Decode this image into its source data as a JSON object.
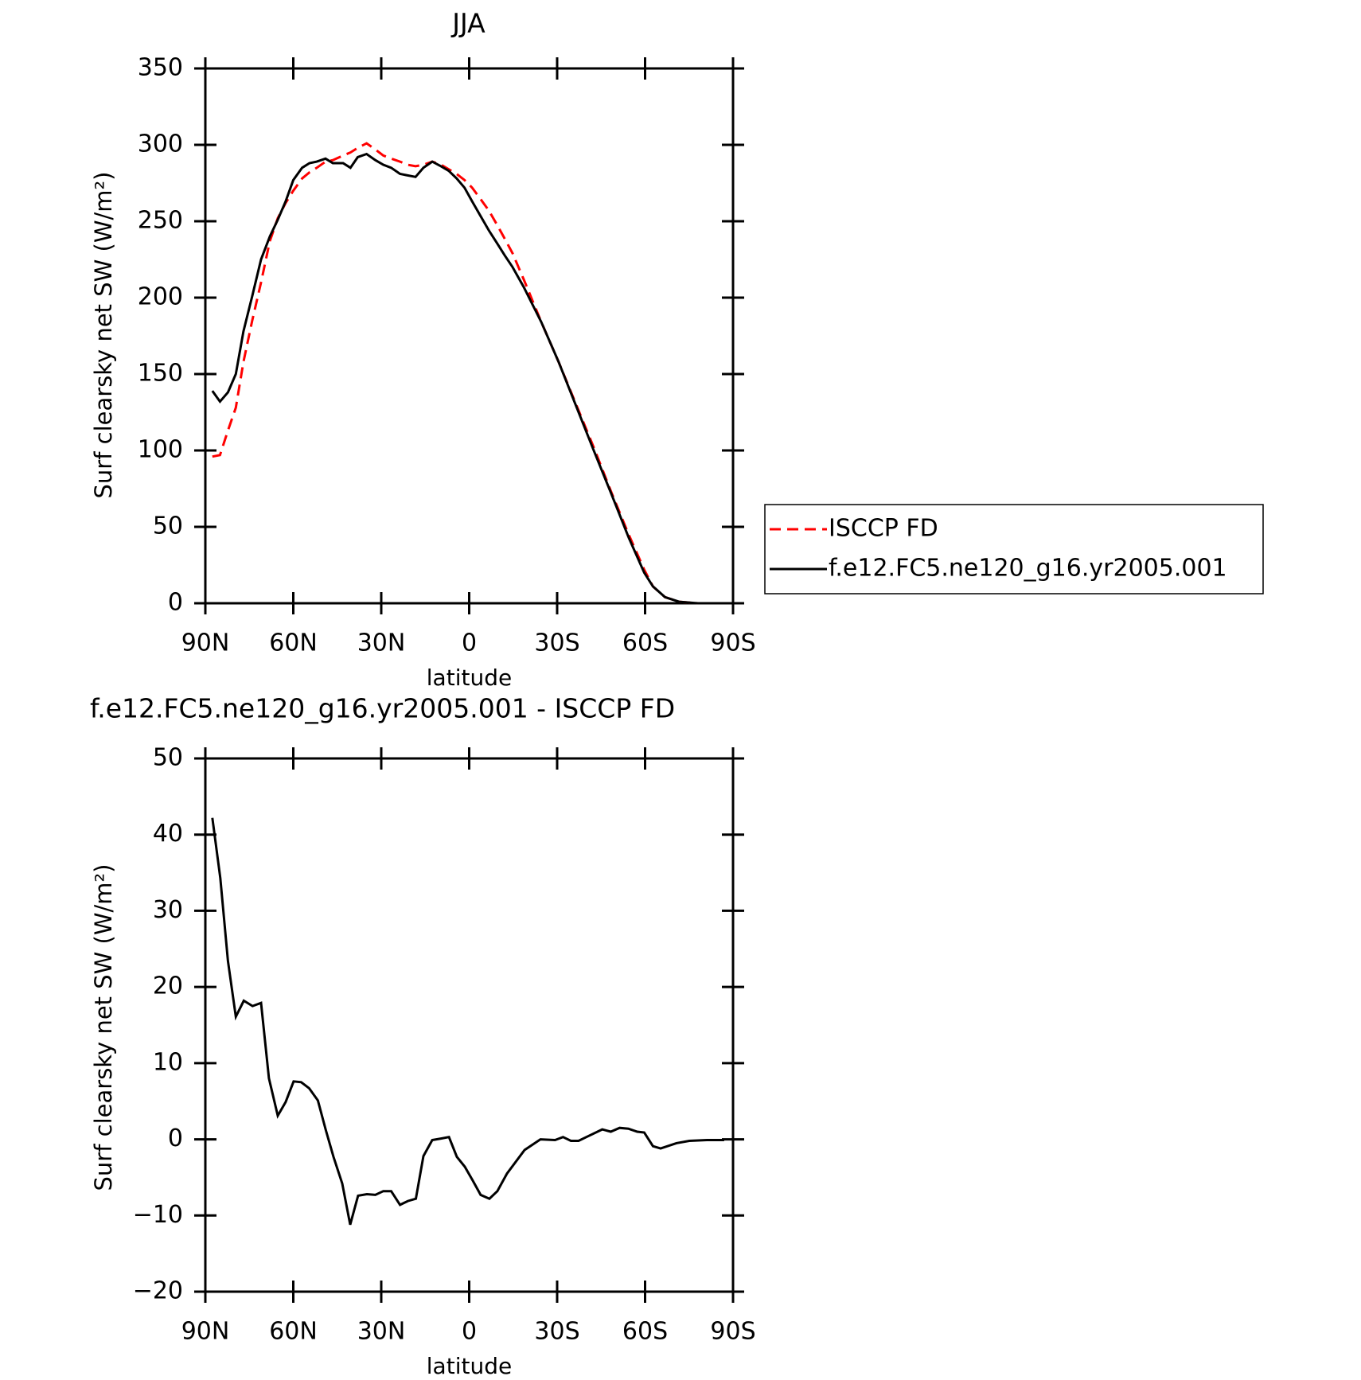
{
  "chart_data": [
    {
      "type": "line",
      "title": "JJA",
      "xlabel": "latitude",
      "ylabel": "Surf clearsky net SW (W/m²)",
      "x": [
        87.6,
        85,
        82.3,
        79.6,
        77,
        74,
        71,
        68,
        65.3,
        62.6,
        60,
        57,
        54.5,
        52,
        49,
        46.5,
        43,
        40.5,
        38,
        35,
        32,
        29.3,
        26.6,
        23.6,
        21,
        18.3,
        15.6,
        12.6,
        9.6,
        7,
        4.3,
        1.6,
        -1,
        -3.7,
        -6.7,
        -9.4,
        -12,
        -14.8,
        -18.6,
        -24.6,
        -30.5,
        -36.5,
        -42.5,
        -48.4,
        -54.4,
        -59.7,
        -62.7,
        -66.8,
        -71.6,
        -78,
        -88.8
      ],
      "series": [
        {
          "name": "ISCCP FD",
          "color": "#ff0000",
          "dashed": true,
          "values": [
            96,
            97,
            113,
            128,
            158,
            185,
            210,
            237,
            252,
            262,
            270,
            278,
            282,
            285,
            289,
            290,
            293,
            295,
            298,
            301,
            297,
            293,
            291,
            289,
            287,
            286,
            287,
            289,
            287,
            284,
            281,
            277,
            272,
            265,
            257,
            248,
            239,
            229,
            212,
            184,
            158,
            130,
            102,
            73,
            45,
            22,
            11,
            4,
            1,
            0,
            0
          ]
        },
        {
          "name": "f.e12.FC5.ne120_g16.yr2005.001",
          "color": "#000000",
          "dashed": false,
          "values": [
            139,
            132,
            138,
            150,
            178,
            201,
            225,
            240,
            251,
            263,
            277,
            285,
            288,
            289,
            291,
            288,
            288,
            285,
            292,
            294,
            290,
            287,
            285,
            281,
            280,
            279,
            285,
            289,
            286,
            283,
            278,
            272,
            263,
            254,
            244,
            236,
            228,
            220,
            207,
            184,
            158,
            129,
            100,
            72,
            43,
            20,
            11,
            4,
            1,
            0,
            0
          ]
        }
      ],
      "xlim": [
        90,
        -90
      ],
      "xticks": [
        {
          "value": 90,
          "label": "90N"
        },
        {
          "value": 60,
          "label": "60N"
        },
        {
          "value": 30,
          "label": "30N"
        },
        0,
        {
          "value": -30,
          "label": "30S"
        },
        {
          "value": -60,
          "label": "60S"
        },
        {
          "value": -90,
          "label": "90S"
        }
      ],
      "ylim": [
        0,
        350
      ],
      "yticks": [
        0,
        50,
        100,
        150,
        200,
        250,
        300,
        350
      ],
      "legend": "right"
    },
    {
      "type": "line",
      "title": "f.e12.FC5.ne120_g16.yr2005.001 - ISCCP FD",
      "xlabel": "latitude",
      "ylabel": "Surf clearsky net SW (W/m²)",
      "x": [
        87.6,
        84.9,
        82.3,
        79.6,
        76.9,
        73.9,
        71,
        68.3,
        65.3,
        62.6,
        59.9,
        57.3,
        54.6,
        51.6,
        48.9,
        46.3,
        43.3,
        40.6,
        37.9,
        34.9,
        32,
        29.3,
        26.6,
        23.6,
        20.9,
        18.2,
        15.6,
        12.6,
        9.6,
        6.9,
        4.2,
        1.5,
        -1.2,
        -3.9,
        -6.9,
        -9.6,
        -12.9,
        -18.9,
        -24.3,
        -29.3,
        -32,
        -34.7,
        -37.3,
        -40,
        -45.4,
        -48.3,
        -51.3,
        -54.3,
        -57.3,
        -59.7,
        -62.7,
        -65.3,
        -70.7,
        -75.1,
        -81.1,
        -87
      ],
      "series": [
        {
          "color": "#000000",
          "dashed": false,
          "values": [
            42.2,
            34.3,
            23.4,
            16.1,
            18.2,
            17.5,
            17.9,
            8,
            3.1,
            4.9,
            7.6,
            7.5,
            6.7,
            5.1,
            1.2,
            -2.3,
            -5.8,
            -11.2,
            -7.4,
            -7.2,
            -7.3,
            -6.8,
            -6.8,
            -8.6,
            -8.1,
            -7.8,
            -2.2,
            -0.1,
            0.1,
            0.3,
            -2.3,
            -3.6,
            -5.4,
            -7.3,
            -7.8,
            -6.8,
            -4.5,
            -1.4,
            0,
            -0.1,
            0.3,
            -0.2,
            -0.2,
            0.3,
            1.3,
            1,
            1.5,
            1.4,
            1,
            0.9,
            -0.9,
            -1.2,
            -0.5,
            -0.2,
            -0.1,
            -0.1
          ]
        }
      ],
      "xlim": [
        90,
        -90
      ],
      "xticks": [
        {
          "value": 90,
          "label": "90N"
        },
        {
          "value": 60,
          "label": "60N"
        },
        {
          "value": 30,
          "label": "30N"
        },
        0,
        {
          "value": -30,
          "label": "30S"
        },
        {
          "value": -60,
          "label": "60S"
        },
        {
          "value": -90,
          "label": "90S"
        }
      ],
      "ylim": [
        -20,
        50
      ],
      "yticks": [
        {
          "value": -20,
          "label": "−20"
        },
        {
          "value": -10,
          "label": "−10"
        },
        0,
        10,
        20,
        30,
        40,
        50
      ]
    }
  ]
}
